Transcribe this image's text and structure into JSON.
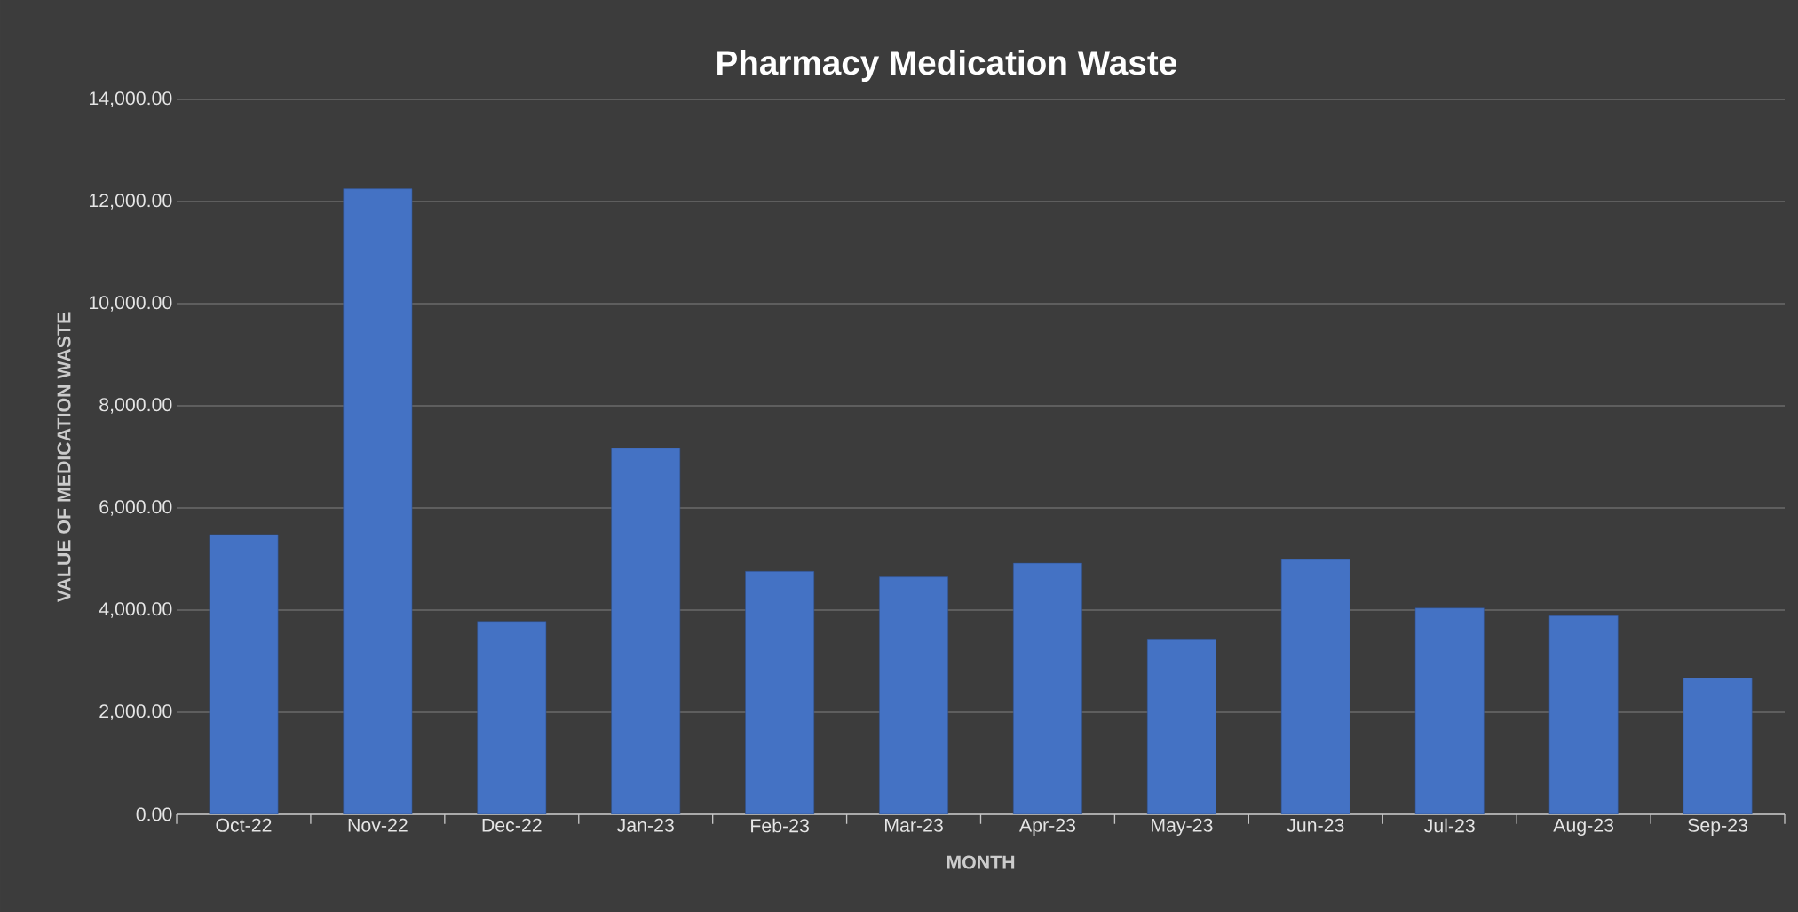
{
  "chart_data": {
    "type": "bar",
    "title": "Pharmacy Medication Waste",
    "xlabel": "MONTH",
    "ylabel": "VALUE OF MEDICATION WASTE",
    "categories": [
      "Oct-22",
      "Nov-22",
      "Dec-22",
      "Jan-23",
      "Feb-23",
      "Mar-23",
      "Apr-23",
      "May-23",
      "Jun-23",
      "Jul-23",
      "Aug-23",
      "Sep-23"
    ],
    "values": [
      5480,
      12250,
      3780,
      7170,
      4760,
      4650,
      4920,
      3420,
      4990,
      4040,
      3890,
      2670
    ],
    "color": "#4472c4",
    "ylim": [
      0,
      14000
    ],
    "yticks": [
      {
        "value": 0,
        "label": "0.00"
      },
      {
        "value": 2000,
        "label": "2,000.00"
      },
      {
        "value": 4000,
        "label": "4,000.00"
      },
      {
        "value": 6000,
        "label": "6,000.00"
      },
      {
        "value": 8000,
        "label": "8,000.00"
      },
      {
        "value": 10000,
        "label": "10,000.00"
      },
      {
        "value": 12000,
        "label": "12,000.00"
      },
      {
        "value": 14000,
        "label": "14,000.00"
      }
    ],
    "grid": "y"
  }
}
